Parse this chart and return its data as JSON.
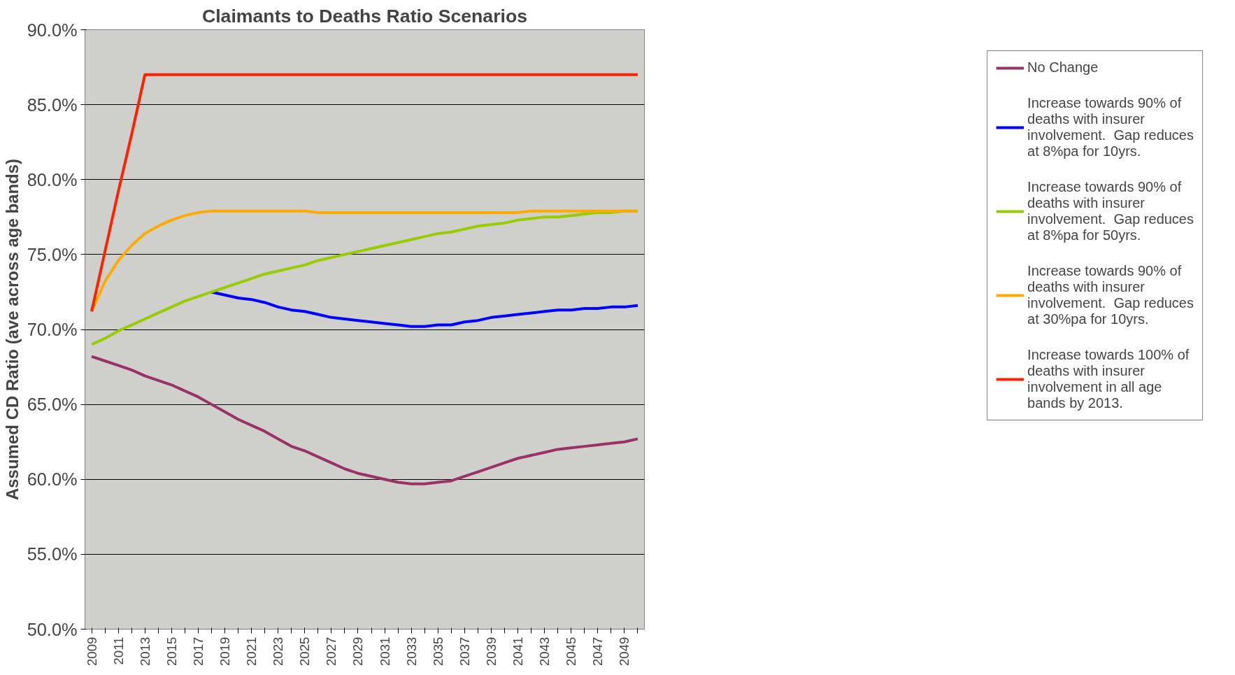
{
  "chart_data": {
    "type": "line",
    "title": "Claimants to Deaths Ratio Scenarios",
    "ylabel": "Assumed CD Ratio (ave across age bands)",
    "categories": [
      "2009",
      null,
      "2011",
      null,
      "2013",
      null,
      "2015",
      null,
      "2017",
      null,
      "2019",
      null,
      "2021",
      null,
      "2023",
      null,
      "2025",
      null,
      "2027",
      null,
      "2029",
      null,
      "2031",
      null,
      "2033",
      null,
      "2035",
      null,
      "2037",
      null,
      "2039",
      null,
      "2041",
      null,
      "2043",
      null,
      "2045",
      null,
      "2047",
      null,
      "2049",
      null
    ],
    "ylim": [
      50,
      90
    ],
    "yticks": [
      {
        "value": 50,
        "label": "50.0%"
      },
      {
        "value": 55,
        "label": "55.0%"
      },
      {
        "value": 60,
        "label": "60.0%"
      },
      {
        "value": 65,
        "label": "65.0%"
      },
      {
        "value": 70,
        "label": "70.0%"
      },
      {
        "value": 75,
        "label": "75.0%"
      },
      {
        "value": 80,
        "label": "80.0%"
      },
      {
        "value": 85,
        "label": "85.0%"
      },
      {
        "value": 90,
        "label": "90.0%"
      }
    ],
    "grid": "y",
    "legend": "right",
    "marker": "none",
    "line_style": "solid",
    "series": [
      {
        "name": "No Change",
        "color": "#993366",
        "values": [
          68.2,
          67.9,
          67.6,
          67.3,
          66.9,
          66.6,
          66.3,
          65.9,
          65.5,
          65.0,
          64.5,
          64.0,
          63.6,
          63.2,
          62.7,
          62.2,
          61.9,
          61.5,
          61.1,
          60.7,
          60.4,
          60.2,
          60.0,
          59.8,
          59.7,
          59.7,
          59.8,
          59.9,
          60.2,
          60.5,
          60.8,
          61.1,
          61.4,
          61.6,
          61.8,
          62.0,
          62.1,
          62.2,
          62.3,
          62.4,
          62.5,
          62.7
        ]
      },
      {
        "name": "Increase towards 90% of deaths with insurer involvement.  Gap reduces at 8%pa for 10yrs.",
        "color": "#0000ff",
        "values": [
          null,
          null,
          null,
          null,
          null,
          null,
          null,
          null,
          null,
          72.5,
          72.3,
          72.1,
          72.0,
          71.8,
          71.5,
          71.3,
          71.2,
          71.0,
          70.8,
          70.7,
          70.6,
          70.5,
          70.4,
          70.3,
          70.2,
          70.2,
          70.3,
          70.3,
          70.5,
          70.6,
          70.8,
          70.9,
          71.0,
          71.1,
          71.2,
          71.3,
          71.3,
          71.4,
          71.4,
          71.5,
          71.5,
          71.6
        ]
      },
      {
        "name": "Increase towards 90% of deaths with insurer involvement.  Gap reduces at 8%pa for 50yrs.",
        "color": "#99cc00",
        "values": [
          69.0,
          69.4,
          69.9,
          70.3,
          70.7,
          71.1,
          71.5,
          71.9,
          72.2,
          72.5,
          72.8,
          73.1,
          73.4,
          73.7,
          73.9,
          74.1,
          74.3,
          74.6,
          74.8,
          75.0,
          75.2,
          75.4,
          75.6,
          75.8,
          76.0,
          76.2,
          76.4,
          76.5,
          76.7,
          76.9,
          77.0,
          77.1,
          77.3,
          77.4,
          77.5,
          77.5,
          77.6,
          77.7,
          77.8,
          77.8,
          77.9,
          77.9
        ]
      },
      {
        "name": "Increase towards 90% of deaths with insurer involvement.  Gap reduces at 30%pa for 10yrs.",
        "color": "#ffaa00",
        "values": [
          71.2,
          73.2,
          74.6,
          75.6,
          76.4,
          76.9,
          77.3,
          77.6,
          77.8,
          77.9,
          77.9,
          77.9,
          77.9,
          77.9,
          77.9,
          77.9,
          77.9,
          77.8,
          77.8,
          77.8,
          77.8,
          77.8,
          77.8,
          77.8,
          77.8,
          77.8,
          77.8,
          77.8,
          77.8,
          77.8,
          77.8,
          77.8,
          77.8,
          77.9,
          77.9,
          77.9,
          77.9,
          77.9,
          77.9,
          77.9,
          77.9,
          77.9
        ]
      },
      {
        "name": "Increase towards 100% of deaths with insurer involvement in all age bands by 2013.",
        "color": "#ff2200",
        "values": [
          71.2,
          75.2,
          79.2,
          83.0,
          87.0,
          87.0,
          87.0,
          87.0,
          87.0,
          87.0,
          87.0,
          87.0,
          87.0,
          87.0,
          87.0,
          87.0,
          87.0,
          87.0,
          87.0,
          87.0,
          87.0,
          87.0,
          87.0,
          87.0,
          87.0,
          87.0,
          87.0,
          87.0,
          87.0,
          87.0,
          87.0,
          87.0,
          87.0,
          87.0,
          87.0,
          87.0,
          87.0,
          87.0,
          87.0,
          87.0,
          87.0,
          87.0
        ]
      }
    ]
  }
}
